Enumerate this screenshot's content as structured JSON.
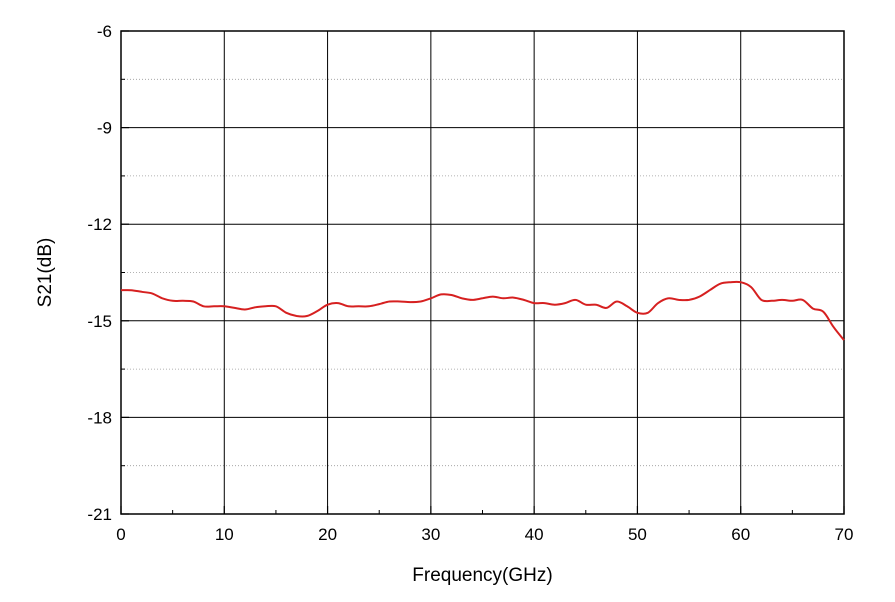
{
  "chart_data": {
    "type": "line",
    "title": "",
    "xlabel": "Frequency(GHz)",
    "ylabel": "S21(dB)",
    "xlim": [
      0,
      70
    ],
    "ylim": [
      -21,
      -6
    ],
    "x_ticks": [
      0,
      10,
      20,
      30,
      40,
      50,
      60,
      70
    ],
    "y_ticks": [
      -21,
      -18,
      -15,
      -12,
      -9,
      -6
    ],
    "x_tick_labels": [
      "0",
      "10",
      "20",
      "30",
      "40",
      "50",
      "60",
      "70"
    ],
    "y_tick_labels": [
      "-21",
      "-18",
      "-15",
      "-12",
      "-9",
      "-6"
    ],
    "grid": {
      "major": true,
      "minor_y_dotted": true
    },
    "series": [
      {
        "color": "#d62020",
        "x": [
          0,
          1,
          2,
          3,
          4,
          5,
          6,
          7,
          8,
          9,
          10,
          11,
          12,
          13,
          14,
          15,
          16,
          17,
          18,
          19,
          20,
          21,
          22,
          23,
          24,
          25,
          26,
          27,
          28,
          29,
          30,
          31,
          32,
          33,
          34,
          35,
          36,
          37,
          38,
          39,
          40,
          41,
          42,
          43,
          44,
          45,
          46,
          47,
          48,
          49,
          50,
          51,
          52,
          53,
          54,
          55,
          56,
          57,
          58,
          59,
          60,
          61,
          62,
          63,
          64,
          65,
          66,
          67,
          68,
          69,
          70
        ],
        "y": [
          -14.05,
          -14.05,
          -14.1,
          -14.15,
          -14.3,
          -14.38,
          -14.38,
          -14.4,
          -14.55,
          -14.55,
          -14.55,
          -14.6,
          -14.65,
          -14.58,
          -14.55,
          -14.55,
          -14.75,
          -14.85,
          -14.85,
          -14.7,
          -14.5,
          -14.45,
          -14.55,
          -14.55,
          -14.55,
          -14.48,
          -14.4,
          -14.4,
          -14.42,
          -14.4,
          -14.3,
          -14.18,
          -14.2,
          -14.3,
          -14.35,
          -14.3,
          -14.25,
          -14.3,
          -14.28,
          -14.35,
          -14.45,
          -14.45,
          -14.5,
          -14.45,
          -14.35,
          -14.5,
          -14.5,
          -14.6,
          -14.4,
          -14.55,
          -14.75,
          -14.75,
          -14.45,
          -14.3,
          -14.35,
          -14.35,
          -14.25,
          -14.05,
          -13.85,
          -13.8,
          -13.8,
          -13.95,
          -14.35,
          -14.38,
          -14.35,
          -14.38,
          -14.35,
          -14.62,
          -14.72,
          -15.2,
          -15.6
        ]
      }
    ]
  }
}
